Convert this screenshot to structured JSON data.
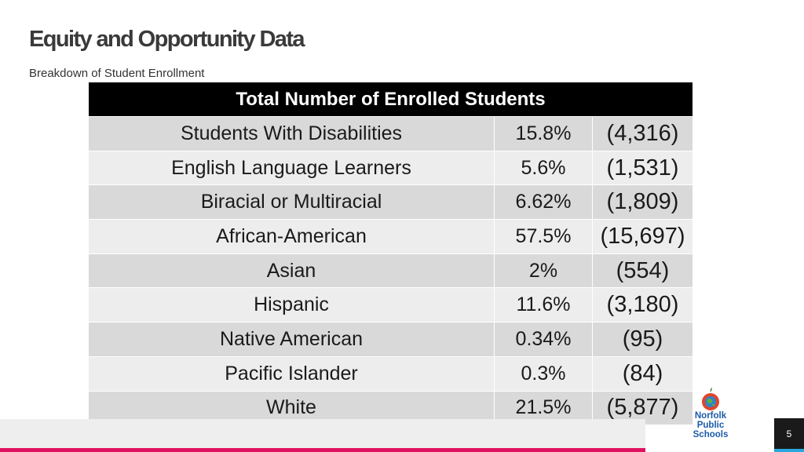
{
  "slide": {
    "title": "Equity and Opportunity Data",
    "subtitle": "Breakdown of Student Enrollment",
    "page_number": "5"
  },
  "table": {
    "header": "Total Number of Enrolled Students",
    "rows": [
      {
        "label": "Students With Disabilities",
        "percent": "15.8%",
        "count": "(4,316)"
      },
      {
        "label": "English Language Learners",
        "percent": "5.6%",
        "count": "(1,531)"
      },
      {
        "label": "Biracial or Multiracial",
        "percent": "6.62%",
        "count": "(1,809)"
      },
      {
        "label": "African-American",
        "percent": "57.5%",
        "count": "(15,697)"
      },
      {
        "label": "Asian",
        "percent": "2%",
        "count": "(554)"
      },
      {
        "label": "Hispanic",
        "percent": "11.6%",
        "count": "(3,180)"
      },
      {
        "label": "Native American",
        "percent": "0.34%",
        "count": "(95)"
      },
      {
        "label": "Pacific Islander",
        "percent": "0.3%",
        "count": "(84)"
      },
      {
        "label": "White",
        "percent": "21.5%",
        "count": "(5,877)"
      }
    ]
  },
  "logo": {
    "icon": "apple-globe-icon",
    "lines": [
      "Norfolk",
      "Public",
      "Schools"
    ]
  },
  "colors": {
    "header_bg": "#000000",
    "row_dark": "#d9d9d9",
    "row_light": "#ededed",
    "accent_pink": "#e0115f",
    "accent_blue": "#29a8e0",
    "logo_blue": "#1b5aa8"
  }
}
